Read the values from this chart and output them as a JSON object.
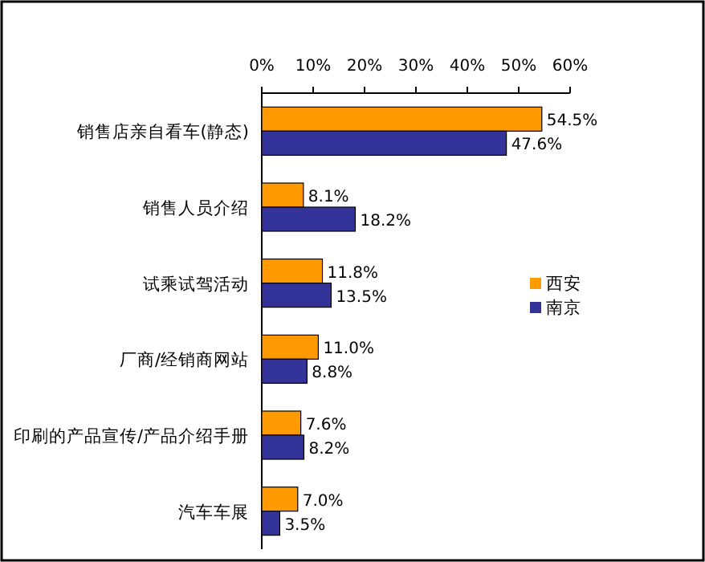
{
  "chart_data": {
    "type": "bar",
    "orientation": "horizontal",
    "legend": "right",
    "categories": [
      "销售店亲自看车(静态)",
      "销售人员介绍",
      "试乘试驾活动",
      "厂商/经销商网站",
      "印刷的产品宣传/产品介绍手册",
      "汽车车展"
    ],
    "series": [
      {
        "name": "西安",
        "color": "#ff9900",
        "values": [
          54.5,
          8.1,
          11.8,
          11.0,
          7.6,
          7.0
        ],
        "value_labels": [
          "54.5%",
          "8.1%",
          "11.8%",
          "11.0%",
          "7.6%",
          "7.0%"
        ]
      },
      {
        "name": "南京",
        "color": "#333399",
        "values": [
          47.6,
          18.2,
          13.5,
          8.8,
          8.2,
          3.5
        ],
        "value_labels": [
          "47.6%",
          "18.2%",
          "13.5%",
          "8.8%",
          "8.2%",
          "3.5%"
        ]
      }
    ],
    "xlim": [
      0,
      60
    ],
    "xticks": [
      {
        "value": 0,
        "label": "0%"
      },
      {
        "value": 10,
        "label": "10%"
      },
      {
        "value": 20,
        "label": "20%"
      },
      {
        "value": 30,
        "label": "30%"
      },
      {
        "value": 40,
        "label": "40%"
      },
      {
        "value": 50,
        "label": "50%"
      },
      {
        "value": 60,
        "label": "60%"
      }
    ]
  }
}
